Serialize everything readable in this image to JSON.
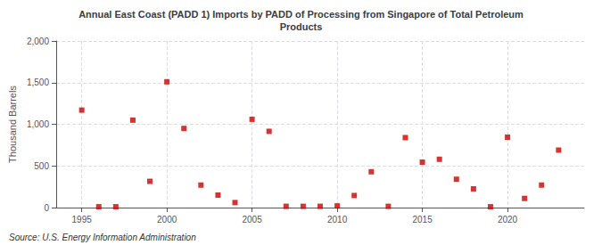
{
  "chart_data": {
    "type": "scatter",
    "title": "Annual East Coast (PADD 1) Imports by PADD of Processing from Singapore of Total Petroleum\nProducts",
    "ylabel": "Thousand Barrels",
    "annotations": [
      "Source: U.S. Energy Information Administration"
    ],
    "x": [
      1995,
      1996,
      1997,
      1998,
      1999,
      2000,
      2001,
      2002,
      2003,
      2004,
      2005,
      2006,
      2007,
      2008,
      2009,
      2010,
      2011,
      2012,
      2013,
      2014,
      2015,
      2016,
      2017,
      2018,
      2019,
      2020,
      2021,
      2022,
      2023
    ],
    "values": [
      1170,
      10,
      10,
      1050,
      315,
      1510,
      950,
      270,
      150,
      60,
      1060,
      915,
      15,
      15,
      15,
      20,
      145,
      430,
      15,
      840,
      545,
      580,
      340,
      225,
      10,
      845,
      110,
      270,
      690
    ],
    "color": "#cc0000",
    "marker": "square",
    "xlim": [
      1993.5,
      2024.5
    ],
    "xticks": [
      1995,
      2000,
      2005,
      2010,
      2015,
      2020
    ],
    "ylim": [
      0,
      2000
    ],
    "yticks": [
      0,
      500,
      {
        "value": 1000,
        "label": "1,000"
      },
      {
        "value": 1500,
        "label": "1,500"
      },
      {
        "value": 2000,
        "label": "2,000"
      }
    ],
    "grid": true
  }
}
